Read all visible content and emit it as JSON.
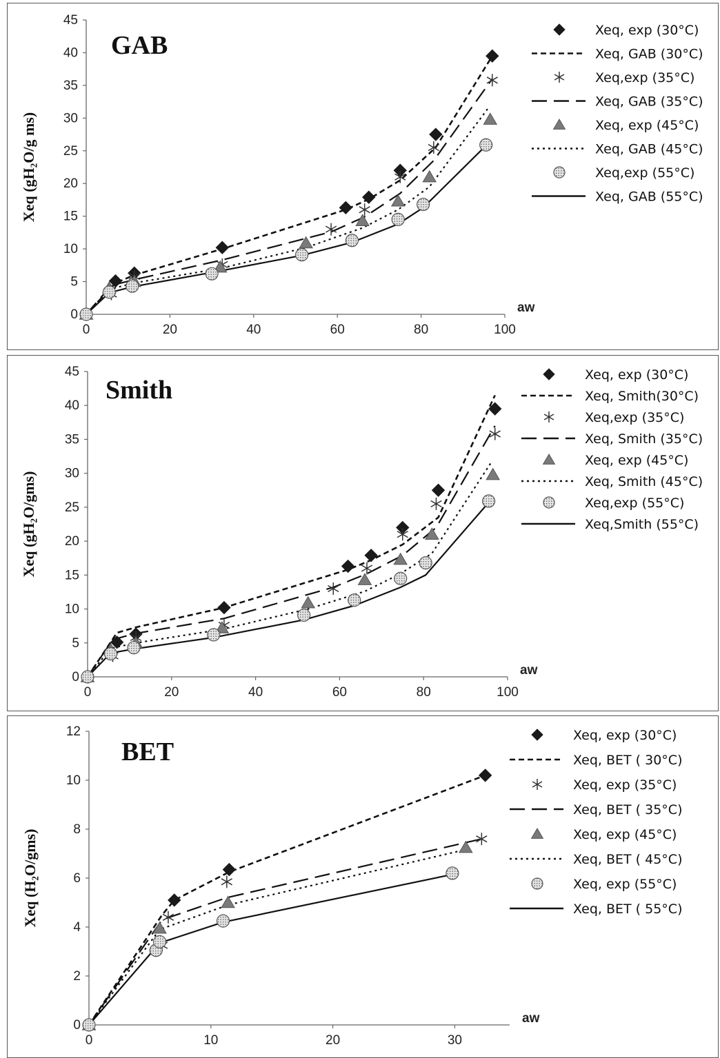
{
  "chart_data": [
    {
      "type": "line",
      "title": "GAB",
      "xlabel": "aw",
      "ylabel": "Xeq (gH₂O/g ms)",
      "xlim": [
        0,
        100
      ],
      "ylim": [
        0,
        45
      ],
      "xticks": [
        0,
        20,
        40,
        60,
        80,
        100
      ],
      "yticks": [
        0,
        5,
        10,
        15,
        20,
        25,
        30,
        35,
        40,
        45
      ],
      "legend_position": "right",
      "series": [
        {
          "name": "Xeq, exp (30°C)",
          "kind": "marker",
          "marker": "diamond",
          "x": [
            0,
            7,
            11.5,
            32.5,
            62,
            67.5,
            75,
            83.5,
            97
          ],
          "y": [
            0,
            5.1,
            6.3,
            10.2,
            16.3,
            17.9,
            22,
            27.5,
            39.5
          ]
        },
        {
          "name": "Xeq, GAB (30°C)",
          "kind": "line",
          "dash": "short",
          "x": [
            0,
            7,
            11.5,
            32.5,
            62,
            67.5,
            75,
            83.5,
            97
          ],
          "y": [
            0,
            4.8,
            6.0,
            10.0,
            16.0,
            17.6,
            20.5,
            25.5,
            39.5
          ]
        },
        {
          "name": "Xeq,exp (35°C)",
          "kind": "marker",
          "marker": "asterisk",
          "x": [
            0,
            6,
            11.5,
            32.5,
            58.5,
            66.5,
            75,
            83,
            97
          ],
          "y": [
            0,
            3.1,
            5.8,
            7.6,
            13,
            16,
            21,
            25.5,
            35.8
          ]
        },
        {
          "name": "Xeq, GAB (35°C)",
          "kind": "line",
          "dash": "long",
          "x": [
            0,
            6,
            11.5,
            32.5,
            58.5,
            66.5,
            75,
            83,
            97
          ],
          "y": [
            0,
            4.4,
            5.3,
            8.3,
            12.6,
            14.9,
            18.5,
            23.5,
            36.0
          ]
        },
        {
          "name": "Xeq, exp (45°C)",
          "kind": "marker",
          "marker": "triangle",
          "x": [
            0,
            5.5,
            11.5,
            32,
            52.5,
            66,
            74.5,
            82,
            96.5
          ],
          "y": [
            0,
            4.0,
            5.0,
            7.2,
            10.9,
            14.3,
            17.3,
            21,
            29.8
          ]
        },
        {
          "name": "Xeq, GAB (45°C)",
          "kind": "line",
          "dash": "dot",
          "x": [
            0,
            5.5,
            11.5,
            32,
            52.5,
            66,
            74.5,
            82,
            96
          ],
          "y": [
            0,
            3.8,
            4.8,
            7.0,
            10.2,
            13.2,
            16.0,
            19.5,
            31.5
          ]
        },
        {
          "name": "Xeq,exp (55°C)",
          "kind": "marker",
          "marker": "circle",
          "x": [
            0,
            5.5,
            11,
            30,
            51.5,
            63.5,
            74.5,
            80.5,
            95.5
          ],
          "y": [
            0,
            3.4,
            4.3,
            6.2,
            9.1,
            11.3,
            14.5,
            16.8,
            25.9
          ]
        },
        {
          "name": "Xeq, GAB (55°C)",
          "kind": "line",
          "dash": "solid",
          "x": [
            0,
            5.5,
            11,
            30,
            51.5,
            63.5,
            74.5,
            80.5,
            95.5
          ],
          "y": [
            0,
            3.3,
            4.2,
            6.4,
            9.0,
            11.0,
            13.8,
            16.3,
            25.8
          ]
        }
      ]
    },
    {
      "type": "line",
      "title": "Smith",
      "xlabel": "aw",
      "ylabel": "Xeq (gH₂O/gms)",
      "xlim": [
        0,
        100
      ],
      "ylim": [
        0,
        45
      ],
      "xticks": [
        0,
        20,
        40,
        60,
        80,
        100
      ],
      "yticks": [
        0,
        5,
        10,
        15,
        20,
        25,
        30,
        35,
        40,
        45
      ],
      "legend_position": "right",
      "series": [
        {
          "name": "Xeq, exp (30°C)",
          "kind": "marker",
          "marker": "diamond",
          "x": [
            0,
            7,
            11.5,
            32.5,
            62,
            67.5,
            75,
            83.5,
            97
          ],
          "y": [
            0,
            5.1,
            6.3,
            10.2,
            16.3,
            17.9,
            22,
            27.5,
            39.5
          ]
        },
        {
          "name": "Xeq, Smith(30°C)",
          "kind": "line",
          "dash": "short",
          "x": [
            0,
            7,
            11.5,
            32.5,
            62,
            67.5,
            75,
            83.5,
            97
          ],
          "y": [
            0,
            6.5,
            7.3,
            10.2,
            15.8,
            17.2,
            19.5,
            23.5,
            41.5
          ]
        },
        {
          "name": "Xeq,exp (35°C)",
          "kind": "marker",
          "marker": "asterisk",
          "x": [
            0,
            6,
            11.5,
            32.5,
            58.5,
            66.5,
            75,
            83,
            97
          ],
          "y": [
            0,
            3.1,
            5.8,
            7.6,
            13,
            16,
            21,
            25.5,
            35.8
          ]
        },
        {
          "name": "Xeq, Smith (35°C)",
          "kind": "line",
          "dash": "long",
          "x": [
            0,
            6,
            11.5,
            32.5,
            58.5,
            66.5,
            75,
            83,
            97
          ],
          "y": [
            0,
            5.5,
            6.4,
            8.6,
            13.2,
            15.2,
            17.9,
            22.0,
            37.0
          ]
        },
        {
          "name": "Xeq, exp (45°C)",
          "kind": "marker",
          "marker": "triangle",
          "x": [
            0,
            5.5,
            11.5,
            32,
            52.5,
            66,
            74.5,
            82,
            96.5
          ],
          "y": [
            0,
            4.0,
            5.0,
            7.2,
            10.9,
            14.3,
            17.3,
            21,
            29.8
          ]
        },
        {
          "name": "Xeq, Smith (45°C)",
          "kind": "line",
          "dash": "dot",
          "x": [
            0,
            5.5,
            11.5,
            32,
            52.5,
            66,
            74.5,
            82,
            96
          ],
          "y": [
            0,
            4.2,
            5.0,
            7.0,
            10.0,
            12.6,
            15.2,
            18.2,
            31.5
          ]
        },
        {
          "name": "Xeq,exp (55°C)",
          "kind": "marker",
          "marker": "circle",
          "x": [
            0,
            5.5,
            11,
            30,
            51.5,
            63.5,
            74.5,
            80.5,
            95.5
          ],
          "y": [
            0,
            3.4,
            4.3,
            6.2,
            9.1,
            11.3,
            14.5,
            16.8,
            25.9
          ]
        },
        {
          "name": "Xeq,Smith (55°C)",
          "kind": "line",
          "dash": "solid",
          "x": [
            0,
            5.5,
            11,
            30,
            51.5,
            63.5,
            74.5,
            80.5,
            95.5
          ],
          "y": [
            0,
            3.5,
            4.1,
            5.8,
            8.4,
            10.5,
            13.2,
            15.0,
            25.7
          ]
        }
      ]
    },
    {
      "type": "line",
      "title": "BET",
      "xlabel": "aw",
      "ylabel": "Xeq (H₂O/gms)",
      "xlim": [
        0,
        34.5
      ],
      "ylim": [
        0,
        12
      ],
      "xticks": [
        0,
        10,
        20,
        30
      ],
      "yticks": [
        0,
        2,
        4,
        6,
        8,
        10,
        12
      ],
      "legend_position": "right",
      "series": [
        {
          "name": "Xeq, exp (30°C)",
          "kind": "marker",
          "marker": "diamond",
          "x": [
            0,
            7,
            11.5,
            32.5
          ],
          "y": [
            0,
            5.1,
            6.35,
            10.2
          ]
        },
        {
          "name": "Xeq, BET ( 30°C)",
          "kind": "line",
          "dash": "short",
          "x": [
            0,
            6,
            7,
            11.5,
            32.5
          ],
          "y": [
            0,
            4.5,
            5.1,
            6.25,
            10.2
          ]
        },
        {
          "name": "Xeq, exp (35°C)",
          "kind": "marker",
          "marker": "asterisk",
          "x": [
            0,
            6,
            6.5,
            11.3,
            32.2
          ],
          "y": [
            0,
            3.25,
            4.4,
            5.85,
            7.6
          ]
        },
        {
          "name": "Xeq, BET ( 35°C)",
          "kind": "line",
          "dash": "long",
          "x": [
            0,
            6,
            11.3,
            32.2
          ],
          "y": [
            0,
            4.3,
            5.2,
            7.6
          ]
        },
        {
          "name": "Xeq, exp (45°C)",
          "kind": "marker",
          "marker": "triangle",
          "x": [
            0,
            5.8,
            11.4,
            30.9
          ],
          "y": [
            0,
            3.95,
            5.0,
            7.25
          ]
        },
        {
          "name": "Xeq, BET ( 45°C)",
          "kind": "line",
          "dash": "dot",
          "x": [
            0,
            5.8,
            11.4,
            31.2
          ],
          "y": [
            0,
            3.9,
            4.9,
            7.2
          ]
        },
        {
          "name": "Xeq, exp (55°C)",
          "kind": "marker",
          "marker": "circle",
          "x": [
            0,
            5.5,
            5.8,
            11,
            29.8
          ],
          "y": [
            0,
            3.05,
            3.4,
            4.25,
            6.2
          ]
        },
        {
          "name": "Xeq, BET ( 55°C)",
          "kind": "line",
          "dash": "solid",
          "x": [
            0,
            5.8,
            11,
            29.8
          ],
          "y": [
            0,
            3.35,
            4.2,
            6.15
          ]
        }
      ]
    }
  ]
}
